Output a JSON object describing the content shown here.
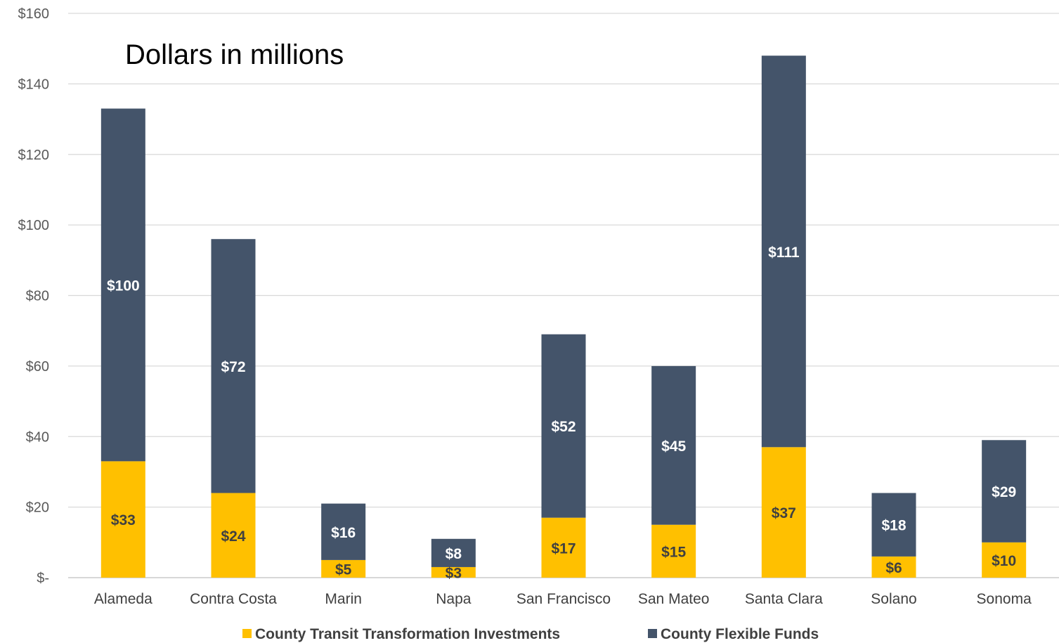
{
  "chart_data": {
    "type": "bar",
    "stacked": true,
    "title": "Dollars in millions",
    "categories": [
      "Alameda",
      "Contra Costa",
      "Marin",
      "Napa",
      "San Francisco",
      "San Mateo",
      "Santa Clara",
      "Solano",
      "Sonoma"
    ],
    "series": [
      {
        "name": "County Transit Transformation Investments",
        "color": "#ffc000",
        "label_color": "#404040",
        "values": [
          33,
          24,
          5,
          3,
          17,
          15,
          37,
          6,
          10
        ],
        "labels": [
          "$33",
          "$24",
          "$5",
          "$3",
          "$17",
          "$15",
          "$37",
          "$6",
          "$10"
        ]
      },
      {
        "name": "County Flexible Funds",
        "color": "#44546a",
        "label_color": "#ffffff",
        "values": [
          100,
          72,
          16,
          8,
          52,
          45,
          111,
          18,
          29
        ],
        "labels": [
          "$100",
          "$72",
          "$16",
          "$8",
          "$52",
          "$45",
          "$111",
          "$18",
          "$29"
        ]
      }
    ],
    "ylim": [
      0,
      160
    ],
    "yticks": [
      0,
      20,
      40,
      60,
      80,
      100,
      120,
      140,
      160
    ],
    "ytick_labels": [
      "$-",
      "$20",
      "$40",
      "$60",
      "$80",
      "$100",
      "$120",
      "$140",
      "$160"
    ],
    "grid": true,
    "legend_position": "bottom"
  }
}
